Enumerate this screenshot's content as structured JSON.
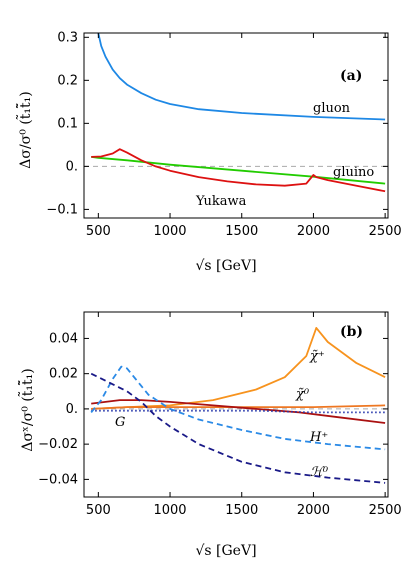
{
  "chart_data": [
    {
      "type": "line",
      "panel_label": "(a)",
      "xlabel": "√s [GeV]",
      "ylabel": "Δσ/σ⁰ (t̃₁t̃̄₁)",
      "xlim": [
        400,
        2520
      ],
      "ylim": [
        -0.12,
        0.31
      ],
      "xticks": [
        500,
        1000,
        1500,
        2000,
        2500
      ],
      "yticks": [
        -0.1,
        0.0,
        0.1,
        0.2,
        0.3
      ],
      "ytick_labels": [
        "−0.1",
        "0.",
        "0.1",
        "0.2",
        "0.3"
      ],
      "grid": false,
      "reference_line": 0.0,
      "series": [
        {
          "name": "gluon",
          "color": "#1e88e5",
          "style": "solid",
          "x": [
            500,
            520,
            550,
            600,
            650,
            700,
            800,
            900,
            1000,
            1200,
            1500,
            2000,
            2500
          ],
          "y": [
            0.31,
            0.28,
            0.255,
            0.225,
            0.205,
            0.19,
            0.17,
            0.155,
            0.145,
            0.133,
            0.124,
            0.115,
            0.109
          ],
          "label_pos": "right"
        },
        {
          "name": "gluino",
          "color": "#22cc00",
          "style": "solid",
          "x": [
            450,
            500,
            700,
            1000,
            1500,
            2000,
            2500
          ],
          "y": [
            0.022,
            0.02,
            0.014,
            0.004,
            -0.01,
            -0.024,
            -0.04
          ],
          "label_pos": "right"
        },
        {
          "name": "Yukawa",
          "color": "#dd1111",
          "style": "solid",
          "x": [
            450,
            520,
            600,
            650,
            700,
            800,
            900,
            1000,
            1200,
            1400,
            1600,
            1800,
            1950,
            2000,
            2020,
            2100,
            2300,
            2500
          ],
          "y": [
            0.022,
            0.023,
            0.03,
            0.04,
            0.032,
            0.014,
            0.0,
            -0.01,
            -0.025,
            -0.035,
            -0.042,
            -0.045,
            -0.04,
            -0.02,
            -0.025,
            -0.032,
            -0.045,
            -0.058
          ],
          "label_pos": "middle"
        }
      ]
    },
    {
      "type": "line",
      "panel_label": "(b)",
      "xlabel": "√s [GeV]",
      "ylabel": "Δσˣ/σ⁰ (t̃₁t̃̄₁)",
      "xlim": [
        400,
        2520
      ],
      "ylim": [
        -0.05,
        0.055
      ],
      "xticks": [
        500,
        1000,
        1500,
        2000,
        2500
      ],
      "yticks": [
        -0.04,
        -0.02,
        0.0,
        0.02,
        0.04
      ],
      "ytick_labels": [
        "−0.04",
        "−0.02",
        "0.",
        "0.02",
        "0.04"
      ],
      "grid": false,
      "reference_line": 0.0,
      "series": [
        {
          "name": "χ̃⁺",
          "color": "#f7931e",
          "style": "solid",
          "x": [
            450,
            700,
            1000,
            1300,
            1600,
            1800,
            1950,
            2020,
            2100,
            2300,
            2500
          ],
          "y": [
            0.0,
            0.001,
            0.002,
            0.005,
            0.011,
            0.018,
            0.03,
            0.046,
            0.038,
            0.026,
            0.018
          ]
        },
        {
          "name": "χ̃⁰",
          "color": "#ee7722",
          "style": "solid",
          "x": [
            450,
            700,
            1000,
            1500,
            2000,
            2500
          ],
          "y": [
            0.0,
            0.001,
            0.001,
            0.001,
            0.001,
            0.002
          ]
        },
        {
          "name": "G",
          "color": "#aa1111",
          "style": "solid",
          "x": [
            450,
            550,
            650,
            800,
            1000,
            1300,
            1600,
            1900,
            2200,
            2500
          ],
          "y": [
            0.003,
            0.004,
            0.005,
            0.005,
            0.004,
            0.002,
            0.0,
            -0.002,
            -0.005,
            -0.008
          ]
        },
        {
          "name": "",
          "color": "#2233aa",
          "style": "dotted",
          "x": [
            450,
            800,
            1200,
            1600,
            2000,
            2500
          ],
          "y": [
            -0.001,
            -0.001,
            -0.001,
            -0.001,
            -0.002,
            -0.002
          ]
        },
        {
          "name": "H⁺",
          "color": "#2b8ae6",
          "style": "dashed",
          "x": [
            450,
            520,
            600,
            660,
            700,
            760,
            850,
            1000,
            1200,
            1500,
            1800,
            2100,
            2500
          ],
          "y": [
            -0.002,
            0.005,
            0.017,
            0.024,
            0.023,
            0.017,
            0.008,
            0.0,
            -0.006,
            -0.012,
            -0.017,
            -0.02,
            -0.023
          ]
        },
        {
          "name": "ℋ⁰",
          "color": "#1a1a88",
          "style": "dashed",
          "x": [
            450,
            550,
            650,
            700,
            800,
            900,
            1000,
            1200,
            1500,
            1800,
            2100,
            2500
          ],
          "y": [
            0.02,
            0.016,
            0.012,
            0.01,
            0.004,
            -0.004,
            -0.01,
            -0.02,
            -0.03,
            -0.036,
            -0.039,
            -0.042
          ]
        }
      ]
    }
  ],
  "labels_a": {
    "tag": "(a)",
    "gluon": "gluon",
    "gluino": "gluino",
    "yukawa": "Yukawa",
    "xlabel": "√s [GeV]",
    "ylabel": "Δσ/σ⁰ (t̃₁t̃̄₁)"
  },
  "labels_b": {
    "tag": "(b)",
    "chi_plus": "χ̃⁺",
    "chi_zero": "χ̃⁰",
    "G": "G",
    "H_plus": "H⁺",
    "H_zero": "ℋ⁰",
    "xlabel": "√s [GeV]",
    "ylabel": "Δσˣ/σ⁰ (t̃₁t̃̄₁)"
  }
}
